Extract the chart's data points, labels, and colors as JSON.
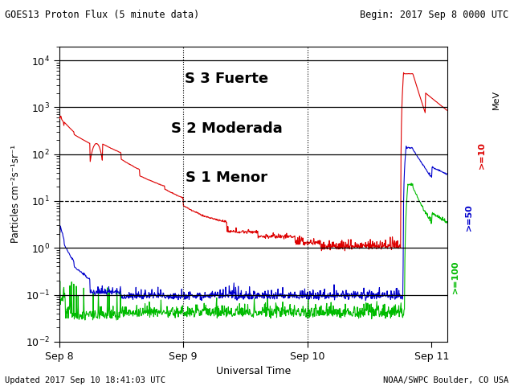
{
  "title_left": "GOES13 Proton Flux (5 minute data)",
  "title_right": "Begin: 2017 Sep 8 0000 UTC",
  "footer_left": "Updated 2017 Sep 10 18:41:03 UTC",
  "footer_right": "NOAA/SWPC Boulder, CO USA",
  "ylabel": "Particles cm⁻²s⁻¹sr⁻¹",
  "xlabel": "Universal Time",
  "label_MeV": "MeV",
  "label_10MeV": ">=10",
  "label_50MeV": ">=50",
  "label_100MeV": ">=100",
  "color_10MeV": "#dd0000",
  "color_50MeV": "#0000cc",
  "color_100MeV": "#00bb00",
  "text_s3": "S 3 Fuerte",
  "text_s2": "S 2 Moderada",
  "text_s1": "S 1 Menor",
  "hlines_solid": [
    10000,
    1000,
    100,
    1.0,
    0.1
  ],
  "hline_dashed": 10.0,
  "vline_positions": [
    1.0,
    2.0
  ],
  "xtick_positions": [
    0,
    1,
    2,
    3
  ],
  "xtick_labels": [
    "Sep 8",
    "Sep 9",
    "Sep 10",
    "Sep 11"
  ],
  "xmin": 0,
  "xmax": 3.125,
  "ymin": 0.01,
  "ymax": 20000,
  "bg_color": "#ffffff"
}
